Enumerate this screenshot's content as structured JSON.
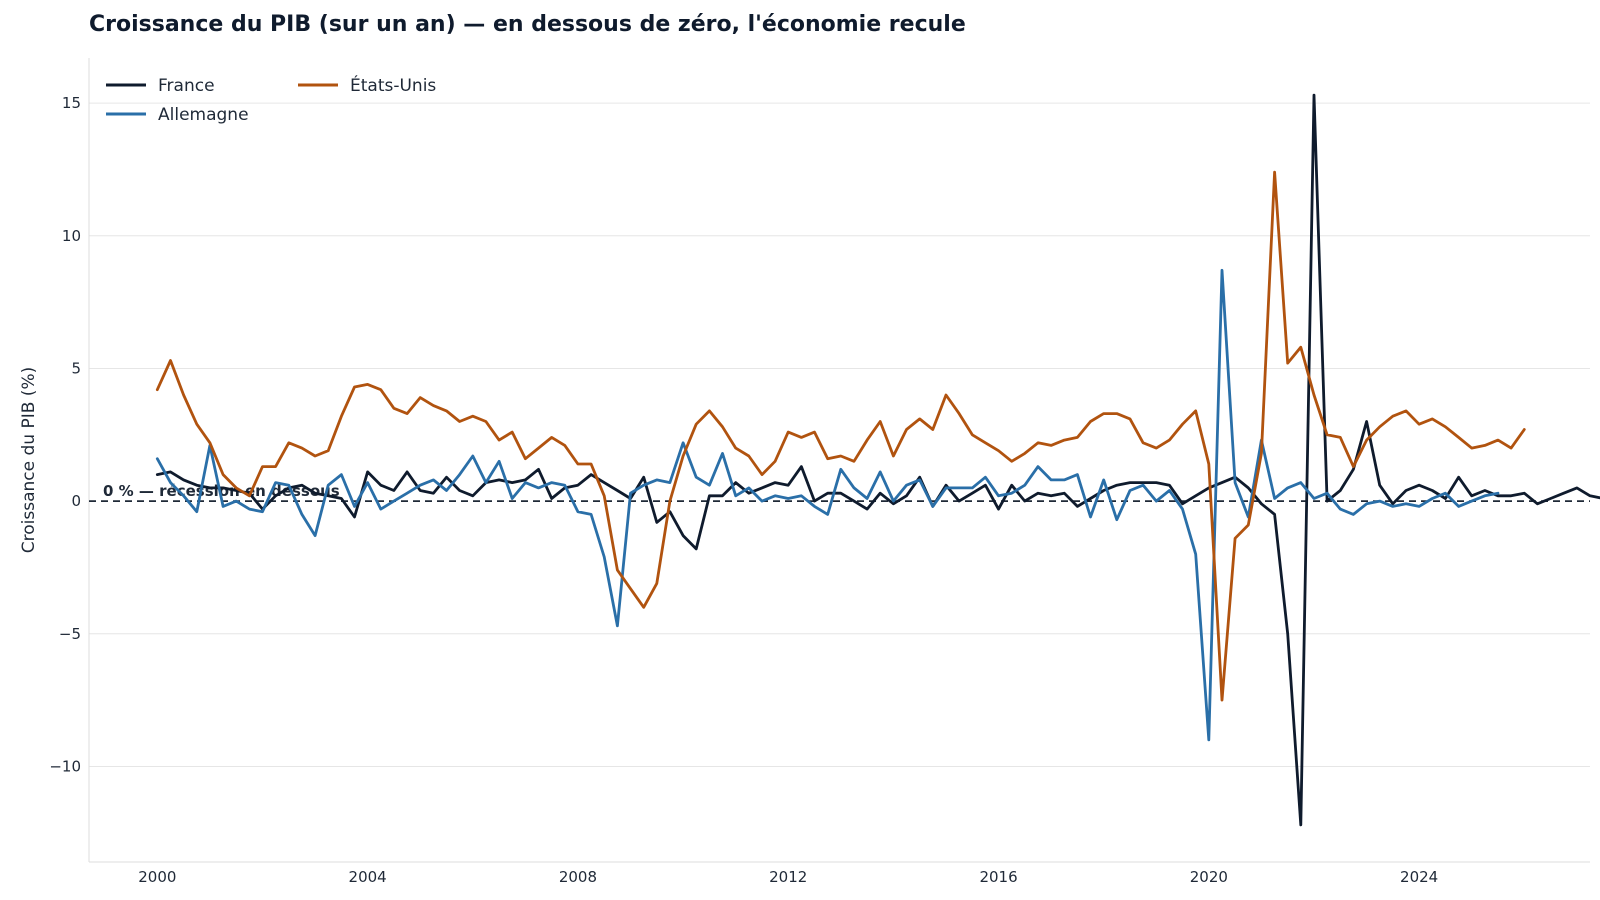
{
  "title": "Croissance du PIB (sur un an) — en dessous de zéro, l'économie recule",
  "chart_data": {
    "type": "line",
    "title": "Croissance du PIB (sur un an) — en dessous de zéro, l'économie recule",
    "xlabel": "",
    "ylabel": "Croissance du PIB (%)",
    "xlim": [
      1998.7,
      2027.25
    ],
    "ylim": [
      -13.6,
      16.7
    ],
    "xticks": [
      2000,
      2004,
      2008,
      2012,
      2016,
      2020,
      2024
    ],
    "yticks": [
      -10,
      -5,
      0,
      5,
      10,
      15
    ],
    "ytick_labels": [
      "−10",
      "−5",
      "0",
      "5",
      "10",
      "15"
    ],
    "grid": "horizontal",
    "legend_position": "top-left",
    "reference_line": {
      "y": 0,
      "style": "dashed",
      "label": "0 % — récession en dessous"
    },
    "x_start": 2000.0,
    "x_step": 0.25,
    "series": [
      {
        "name": "France",
        "color": "#0f1b2d",
        "values": [
          1.0,
          1.1,
          0.8,
          0.6,
          0.5,
          0.5,
          0.4,
          0.3,
          -0.3,
          0.2,
          0.5,
          0.6,
          0.3,
          0.2,
          0.1,
          -0.6,
          1.1,
          0.6,
          0.4,
          1.1,
          0.4,
          0.3,
          0.9,
          0.4,
          0.2,
          0.7,
          0.8,
          0.7,
          0.8,
          1.2,
          0.1,
          0.5,
          0.6,
          1.0,
          0.7,
          0.4,
          0.1,
          0.9,
          -0.8,
          -0.4,
          -1.3,
          -1.8,
          0.2,
          0.2,
          0.7,
          0.3,
          0.5,
          0.7,
          0.6,
          1.3,
          0.0,
          0.3,
          0.3,
          0.0,
          -0.3,
          0.3,
          -0.1,
          0.2,
          0.9,
          -0.2,
          0.6,
          0.0,
          0.3,
          0.6,
          -0.3,
          0.6,
          0.0,
          0.3,
          0.2,
          0.3,
          -0.2,
          0.1,
          0.4,
          0.6,
          0.7,
          0.7,
          0.7,
          0.6,
          -0.1,
          0.2,
          0.5,
          0.7,
          0.9,
          0.5,
          -0.1,
          -0.5,
          -5.0,
          -12.2,
          15.3,
          0.0,
          0.4,
          1.2,
          3.0,
          0.6,
          -0.1,
          0.4,
          0.6,
          0.4,
          0.1,
          0.9,
          0.2,
          0.4,
          0.2,
          0.2,
          0.3,
          -0.1,
          0.1,
          0.3,
          0.5,
          0.2,
          0.1
        ]
      },
      {
        "name": "Allemagne",
        "color": "#2a6fa8",
        "values": [
          1.6,
          0.7,
          0.2,
          -0.4,
          2.1,
          -0.2,
          0.0,
          -0.3,
          -0.4,
          0.7,
          0.6,
          -0.5,
          -1.3,
          0.6,
          1.0,
          -0.2,
          0.7,
          -0.3,
          0.0,
          0.3,
          0.6,
          0.8,
          0.4,
          1.0,
          1.7,
          0.7,
          1.5,
          0.1,
          0.7,
          0.5,
          0.7,
          0.6,
          -0.4,
          -0.5,
          -2.1,
          -4.7,
          0.3,
          0.6,
          0.8,
          0.7,
          2.2,
          0.9,
          0.6,
          1.8,
          0.2,
          0.5,
          0.0,
          0.2,
          0.1,
          0.2,
          -0.2,
          -0.5,
          1.2,
          0.5,
          0.1,
          1.1,
          0.0,
          0.6,
          0.8,
          -0.2,
          0.5,
          0.5,
          0.5,
          0.9,
          0.2,
          0.3,
          0.6,
          1.3,
          0.8,
          0.8,
          1.0,
          -0.6,
          0.8,
          -0.7,
          0.4,
          0.6,
          0.0,
          0.4,
          -0.3,
          -2.0,
          -9.0,
          8.7,
          0.7,
          -0.6,
          2.3,
          0.1,
          0.5,
          0.7,
          0.1,
          0.3,
          -0.3,
          -0.5,
          -0.1,
          0.0,
          -0.2,
          -0.1,
          -0.2,
          0.1,
          0.3,
          -0.2,
          0.0,
          0.2,
          0.3
        ]
      },
      {
        "name": "États-Unis",
        "color": "#b1530f",
        "values": [
          4.2,
          5.3,
          4.0,
          2.9,
          2.2,
          1.0,
          0.5,
          0.2,
          1.3,
          1.3,
          2.2,
          2.0,
          1.7,
          1.9,
          3.2,
          4.3,
          4.4,
          4.2,
          3.5,
          3.3,
          3.9,
          3.6,
          3.4,
          3.0,
          3.2,
          3.0,
          2.3,
          2.6,
          1.6,
          2.0,
          2.4,
          2.1,
          1.4,
          1.4,
          0.2,
          -2.6,
          -3.3,
          -4.0,
          -3.1,
          0.0,
          1.7,
          2.9,
          3.4,
          2.8,
          2.0,
          1.7,
          1.0,
          1.5,
          2.6,
          2.4,
          2.6,
          1.6,
          1.7,
          1.5,
          2.3,
          3.0,
          1.7,
          2.7,
          3.1,
          2.7,
          4.0,
          3.3,
          2.5,
          2.2,
          1.9,
          1.5,
          1.8,
          2.2,
          2.1,
          2.3,
          2.4,
          3.0,
          3.3,
          3.3,
          3.1,
          2.2,
          2.0,
          2.3,
          2.9,
          3.4,
          1.4,
          -7.5,
          -1.4,
          -0.9,
          1.8,
          12.4,
          5.2,
          5.8,
          4.0,
          2.5,
          2.4,
          1.3,
          2.3,
          2.8,
          3.2,
          3.4,
          2.9,
          3.1,
          2.8,
          2.4,
          2.0,
          2.1,
          2.3,
          2.0,
          2.7
        ]
      }
    ]
  }
}
